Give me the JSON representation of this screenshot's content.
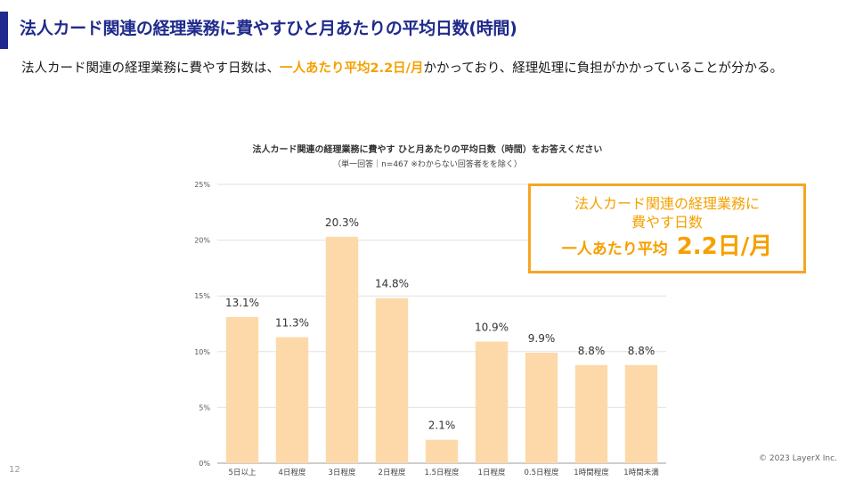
{
  "slide": {
    "title": "法人カード関連の経理業務に費やすひと月あたりの平均日数(時間)",
    "lead_pre": "法人カード関連の経理業務に費やす日数は、",
    "lead_highlight": "一人あたり平均2.2日/月",
    "lead_post": "かかっており、経理処理に負担がかかっていることが分かる。",
    "page_number": "12",
    "copyright": "© 2023 LayerX Inc."
  },
  "callout": {
    "line1": "法人カード関連の経理業務に",
    "line2": "費やす日数",
    "line3_small": "一人あたり平均",
    "line3_big": "2.2日/月"
  },
  "colors": {
    "accent": "#1f2a8c",
    "highlight": "#f5a000",
    "bar": "#fdd9aa"
  },
  "chart_data": {
    "type": "bar",
    "title": "法人カード関連の経理業務に費やす ひと月あたりの平均日数（時間）をお答えください",
    "subtitle": "（単一回答｜n=467 ※わからない回答者をを除く）",
    "categories": [
      "5日以上",
      "4日程度",
      "3日程度",
      "2日程度",
      "1.5日程度",
      "1日程度",
      "0.5日程度",
      "1時間程度",
      "1時間未満"
    ],
    "values": [
      13.1,
      11.3,
      20.3,
      14.8,
      2.1,
      10.9,
      9.9,
      8.8,
      8.8
    ],
    "value_labels": [
      "13.1%",
      "11.3%",
      "20.3%",
      "14.8%",
      "2.1%",
      "10.9%",
      "9.9%",
      "8.8%",
      "8.8%"
    ],
    "yticks": [
      "0%",
      "5%",
      "10%",
      "15%",
      "20%",
      "25%"
    ],
    "ylim": [
      0,
      25
    ],
    "grid": true,
    "xlabel": "",
    "ylabel": ""
  }
}
